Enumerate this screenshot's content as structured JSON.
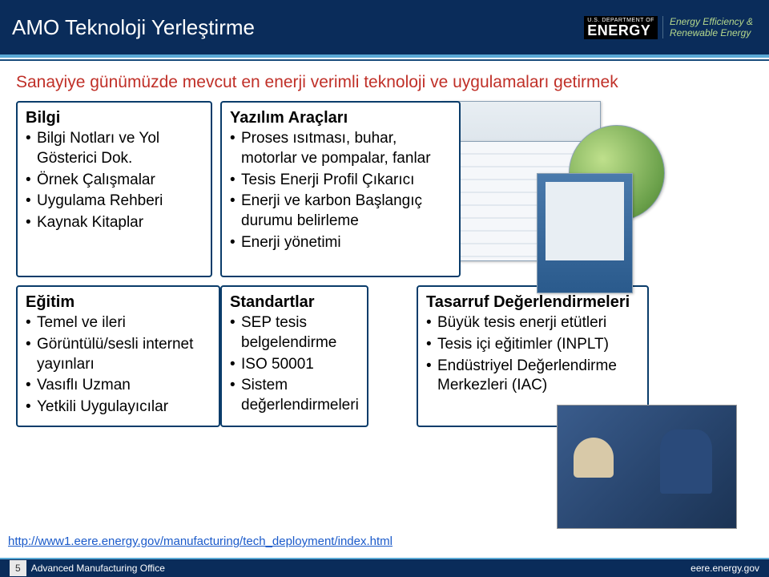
{
  "header": {
    "title": "AMO Teknoloji Yerleştirme",
    "dept_small": "U.S. DEPARTMENT OF",
    "dept_big": "ENERGY",
    "eere_line1": "Energy Efficiency &",
    "eere_line2": "Renewable Energy"
  },
  "intro": "Sanayiye günümüzde mevcut en enerji verimli teknoloji ve uygulamaları getirmek",
  "bilgi": {
    "heading": "Bilgi",
    "items": [
      "Bilgi Notları ve Yol Gösterici Dok.",
      "Örnek Çalışmalar",
      "Uygulama Rehberi",
      "Kaynak Kitaplar"
    ]
  },
  "yazilim": {
    "heading": "Yazılım Araçları",
    "items": [
      "Proses ısıtması, buhar, motorlar ve pompalar, fanlar",
      "Tesis Enerji Profil Çıkarıcı",
      "Enerji ve karbon Başlangıç durumu belirleme",
      "Enerji yönetimi"
    ]
  },
  "egitim": {
    "heading": "Eğitim",
    "items": [
      "Temel ve ileri",
      "Görüntülü/sesli internet yayınları",
      "Vasıflı Uzman",
      "Yetkili Uygulayıcılar"
    ]
  },
  "standartlar": {
    "heading": "Standartlar",
    "items": [
      "SEP tesis belgelendirme",
      "ISO 50001",
      "Sistem değerlendirmeleri"
    ]
  },
  "tasarruf": {
    "heading": "Tasarruf Değerlendirmeleri",
    "items": [
      "Büyük tesis enerji etütleri",
      "Tesis içi eğitimler (INPLT)",
      "Endüstriyel Değerlendirme Merkezleri (IAC)"
    ]
  },
  "link": "http://www1.eere.energy.gov/manufacturing/tech_deployment/index.html",
  "footer": {
    "page": "5",
    "office": "Advanced Manufacturing Office",
    "site": "eere.energy.gov"
  }
}
